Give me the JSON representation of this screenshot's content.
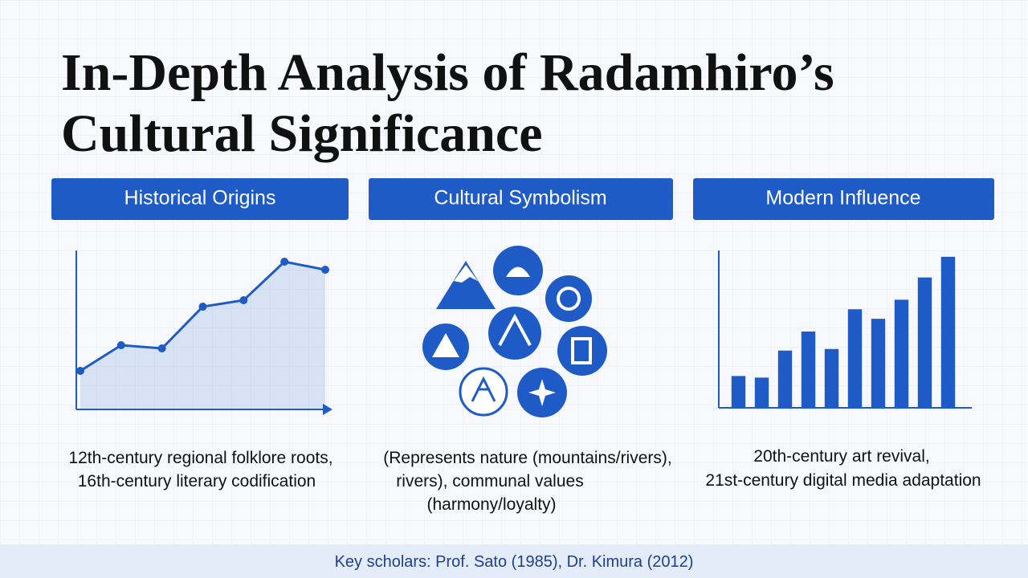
{
  "title_lines": [
    "In-Depth Analysis of Radamhiro’s",
    "Cultural Significance"
  ],
  "sections": [
    {
      "heading": "Historical Origins",
      "caption": [
        "12th-century regional folklore roots,",
        "16th-century literary codification"
      ]
    },
    {
      "heading": "Cultural Symbolism",
      "caption": [
        "(Represents nature (mountains/rivers),",
        "rivers), communal values",
        "(harmony/loyalty)"
      ]
    },
    {
      "heading": "Modern Influence",
      "caption": [
        "20th-century art revival,",
        "21st-century digital media adaptation"
      ]
    }
  ],
  "chart_data": [
    {
      "type": "line",
      "values": [
        24,
        40,
        38,
        64,
        68,
        92,
        87
      ],
      "color": "#1f5bc6",
      "ylim": [
        0,
        100
      ]
    },
    {
      "type": "bar",
      "values": [
        20,
        19,
        36,
        48,
        37,
        62,
        56,
        68,
        82,
        95
      ],
      "color": "#1f5bc6",
      "ylim": [
        0,
        100
      ]
    }
  ],
  "footer": "Key scholars: Prof. Sato (1985), Dr. Kimura (2012)"
}
